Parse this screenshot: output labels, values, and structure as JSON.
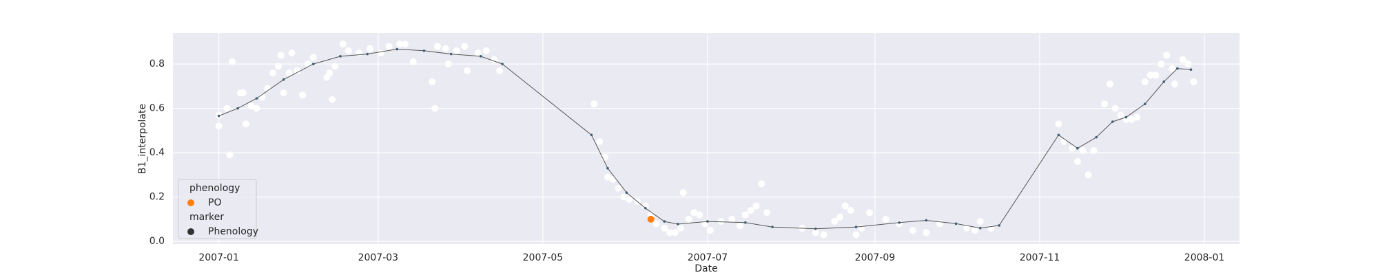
{
  "chart_data": {
    "type": "scatter",
    "x_label": "Date",
    "y_label": "B1_interpolate",
    "background": "#eaeaf2",
    "grid": true,
    "xlim": [
      "2006-12-15",
      "2008-01-14"
    ],
    "xticks": [
      "2007-01",
      "2007-03",
      "2007-05",
      "2007-07",
      "2007-09",
      "2007-11",
      "2008-01"
    ],
    "ylim": [
      -0.012,
      0.94
    ],
    "yticks": [
      {
        "value": 0,
        "label": "0.0"
      },
      0.2,
      0.4,
      0.6,
      0.8
    ],
    "series": [
      {
        "type": "scatter",
        "color": "#ffffff",
        "x": [
          "2007-01-01",
          "2007-01-01",
          "2007-01-04",
          "2007-01-05",
          "2007-01-06",
          "2007-01-09",
          "2007-01-10",
          "2007-01-11",
          "2007-01-13",
          "2007-01-15",
          "2007-01-17",
          "2007-01-19",
          "2007-01-21",
          "2007-01-23",
          "2007-01-24",
          "2007-01-25",
          "2007-01-27",
          "2007-01-28",
          "2007-01-30",
          "2007-02-01",
          "2007-02-03",
          "2007-02-05",
          "2007-02-10",
          "2007-02-11",
          "2007-02-12",
          "2007-02-13",
          "2007-02-16",
          "2007-02-18",
          "2007-02-22",
          "2007-02-26",
          "2007-03-02",
          "2007-03-05",
          "2007-03-09",
          "2007-03-11",
          "2007-03-14",
          "2007-03-21",
          "2007-03-22",
          "2007-03-23",
          "2007-03-26",
          "2007-03-27",
          "2007-03-30",
          "2007-04-02",
          "2007-04-03",
          "2007-04-07",
          "2007-04-10",
          "2007-04-13",
          "2007-04-15",
          "2007-05-20",
          "2007-05-22",
          "2007-05-24",
          "2007-05-25",
          "2007-05-27",
          "2007-05-29",
          "2007-05-31",
          "2007-06-02",
          "2007-06-05",
          "2007-06-08",
          "2007-06-10",
          "2007-06-12",
          "2007-06-15",
          "2007-06-17",
          "2007-06-19",
          "2007-06-21",
          "2007-06-22",
          "2007-06-24",
          "2007-06-26",
          "2007-06-28",
          "2007-06-30",
          "2007-07-02",
          "2007-07-06",
          "2007-07-10",
          "2007-07-13",
          "2007-07-15",
          "2007-07-17",
          "2007-07-19",
          "2007-07-21",
          "2007-07-23",
          "2007-08-05",
          "2007-08-10",
          "2007-08-13",
          "2007-08-17",
          "2007-08-19",
          "2007-08-21",
          "2007-08-23",
          "2007-08-25",
          "2007-08-27",
          "2007-08-30",
          "2007-09-05",
          "2007-09-10",
          "2007-09-15",
          "2007-09-20",
          "2007-09-25",
          "2007-10-05",
          "2007-10-08",
          "2007-10-10",
          "2007-10-14",
          "2007-11-08",
          "2007-11-10",
          "2007-11-13",
          "2007-11-15",
          "2007-11-17",
          "2007-11-19",
          "2007-11-21",
          "2007-11-25",
          "2007-11-27",
          "2007-11-29",
          "2007-12-01",
          "2007-12-03",
          "2007-12-05",
          "2007-12-07",
          "2007-12-10",
          "2007-12-12",
          "2007-12-14",
          "2007-12-16",
          "2007-12-18",
          "2007-12-20",
          "2007-12-21",
          "2007-12-24",
          "2007-12-26",
          "2007-12-28"
        ],
        "values": [
          0.52,
          0.57,
          0.6,
          0.39,
          0.81,
          0.67,
          0.67,
          0.53,
          0.61,
          0.6,
          0.65,
          0.69,
          0.76,
          0.79,
          0.84,
          0.67,
          0.76,
          0.85,
          0.77,
          0.66,
          0.8,
          0.83,
          0.74,
          0.76,
          0.64,
          0.79,
          0.89,
          0.86,
          0.85,
          0.87,
          0.85,
          0.88,
          0.89,
          0.89,
          0.81,
          0.72,
          0.6,
          0.88,
          0.87,
          0.8,
          0.86,
          0.88,
          0.77,
          0.85,
          0.86,
          0.82,
          0.77,
          0.62,
          0.45,
          0.38,
          0.29,
          0.28,
          0.24,
          0.2,
          0.19,
          0.18,
          0.16,
          0.12,
          0.08,
          0.06,
          0.04,
          0.04,
          0.06,
          0.22,
          0.1,
          0.13,
          0.12,
          0.08,
          0.05,
          0.09,
          0.1,
          0.07,
          0.12,
          0.14,
          0.16,
          0.26,
          0.13,
          0.06,
          0.04,
          0.03,
          0.09,
          0.11,
          0.16,
          0.14,
          0.03,
          0.06,
          0.13,
          0.1,
          0.08,
          0.05,
          0.04,
          0.08,
          0.06,
          0.05,
          0.09,
          0.06,
          0.53,
          0.45,
          0.42,
          0.36,
          0.41,
          0.3,
          0.41,
          0.62,
          0.71,
          0.6,
          0.57,
          0.55,
          0.55,
          0.56,
          0.72,
          0.75,
          0.75,
          0.8,
          0.84,
          0.78,
          0.71,
          0.82,
          0.8,
          0.72
        ]
      },
      {
        "type": "line",
        "color": "#555555",
        "marker_color": "#3e5f73",
        "x": [
          "2007-01-01",
          "2007-01-08",
          "2007-01-15",
          "2007-01-25",
          "2007-02-05",
          "2007-02-15",
          "2007-02-25",
          "2007-03-08",
          "2007-03-18",
          "2007-03-28",
          "2007-04-08",
          "2007-04-16",
          "2007-05-19",
          "2007-05-25",
          "2007-06-01",
          "2007-06-08",
          "2007-06-15",
          "2007-06-20",
          "2007-07-01",
          "2007-07-15",
          "2007-07-25",
          "2007-08-10",
          "2007-08-25",
          "2007-09-10",
          "2007-09-20",
          "2007-10-01",
          "2007-10-10",
          "2007-10-17",
          "2007-11-08",
          "2007-11-15",
          "2007-11-22",
          "2007-11-28",
          "2007-12-03",
          "2007-12-10",
          "2007-12-17",
          "2007-12-22",
          "2007-12-27"
        ],
        "values": [
          0.566,
          0.6,
          0.645,
          0.73,
          0.8,
          0.835,
          0.845,
          0.867,
          0.86,
          0.845,
          0.835,
          0.8,
          0.48,
          0.33,
          0.22,
          0.15,
          0.09,
          0.078,
          0.09,
          0.085,
          0.065,
          0.057,
          0.065,
          0.085,
          0.095,
          0.08,
          0.06,
          0.072,
          0.48,
          0.42,
          0.47,
          0.54,
          0.56,
          0.62,
          0.72,
          0.78,
          0.775
        ]
      },
      {
        "type": "scatter",
        "name": "PO",
        "color": "#ff7f0e",
        "x": [
          "2007-06-10"
        ],
        "values": [
          0.1
        ]
      }
    ],
    "legend": {
      "corner": "lower left",
      "hue_title": "phenology",
      "style_title": "marker",
      "style_label": "Phenology",
      "style_color": "#333333"
    }
  }
}
